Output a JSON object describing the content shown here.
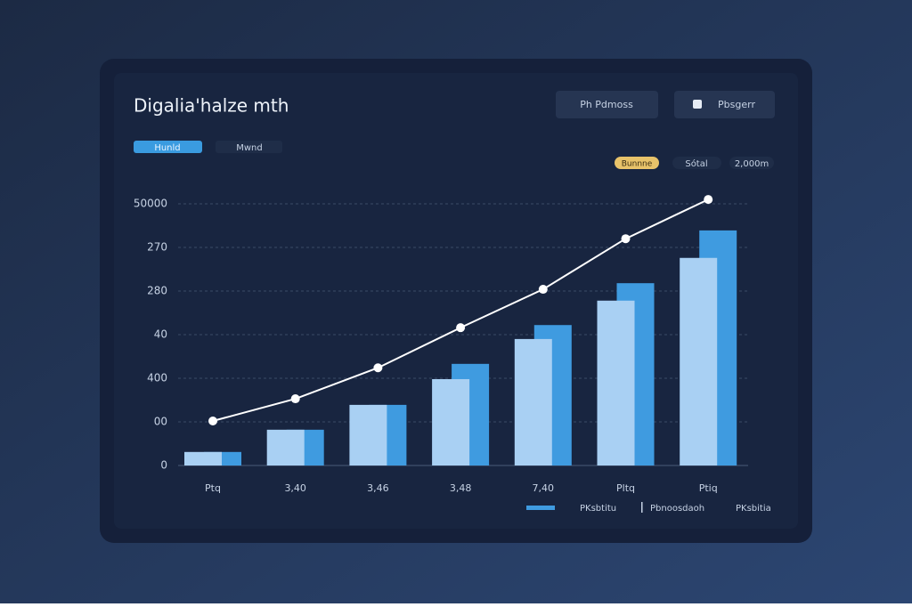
{
  "header": {
    "title": "Digalia'halze mth",
    "buttons": [
      "Ph Pdmoss",
      "Pbsgerr"
    ]
  },
  "tabs": [
    "Hunld",
    "Mwnd"
  ],
  "filters": [
    "Bunnne",
    "Sótal",
    "2,000m"
  ],
  "chart_data": {
    "type": "bar-line",
    "categories": [
      "Ptq",
      "3,40",
      "3,46",
      "3,48",
      "7,40",
      "Pltq",
      "Ptiq"
    ],
    "series": [
      {
        "name": "PKsbtitu",
        "color": "#3f9be0",
        "kind": "bar",
        "values": [
          0.31,
          0.82,
          1.39,
          2.33,
          3.22,
          4.18,
          5.39
        ]
      },
      {
        "name": "Pbnoosdaoh",
        "color": "#ffffff",
        "kind": "line",
        "values": [
          1.02,
          1.53,
          2.24,
          3.16,
          4.04,
          5.2,
          6.1
        ]
      },
      {
        "name": "PKsbitia",
        "color": "#a9d0f3",
        "kind": "bar",
        "values": [
          0.31,
          0.82,
          1.39,
          1.98,
          2.9,
          3.78,
          4.76
        ]
      }
    ],
    "ylim": [
      0,
      6
    ],
    "yticks": [
      {
        "value": 0,
        "label": "0"
      },
      {
        "value": 1,
        "label": "00"
      },
      {
        "value": 2,
        "label": "400"
      },
      {
        "value": 3,
        "label": "40"
      },
      {
        "value": 4,
        "label": "280"
      },
      {
        "value": 5,
        "label": "270"
      },
      {
        "value": 6,
        "label": "50000"
      }
    ],
    "grid": true
  }
}
